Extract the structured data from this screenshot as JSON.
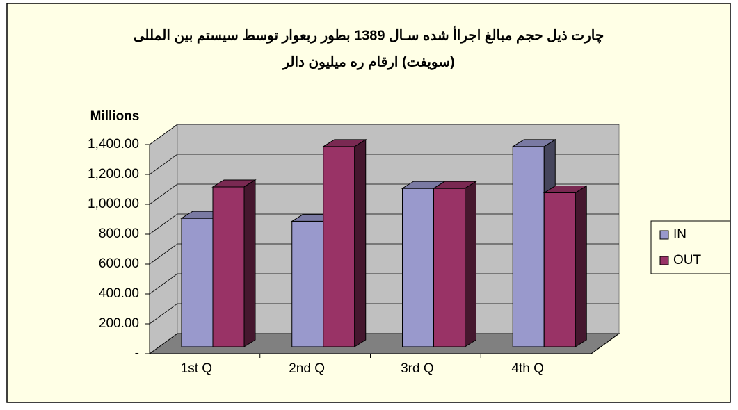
{
  "chart_data": {
    "type": "bar3d",
    "title": [
      "چارت ذیل حجم مبالغ اجراأ شده سـال 1389 بطور ربعوار توسط سیستم بین المللی",
      "(سویفت) ارقام ره میلیون دالر"
    ],
    "y_label": "Millions",
    "categories": [
      "1st Q",
      "2nd Q",
      "3rd Q",
      "4th Q"
    ],
    "series": [
      {
        "name": "IN",
        "color": "#9999cc",
        "values": [
          860,
          840,
          1060,
          1340
        ]
      },
      {
        "name": "OUT",
        "color": "#993366",
        "values": [
          1070,
          1340,
          1060,
          1030
        ]
      }
    ],
    "ylim": [
      0,
      1400
    ],
    "yticks": [
      {
        "value": 0,
        "label": "-"
      },
      {
        "value": 200,
        "label": "200.00"
      },
      {
        "value": 400,
        "label": "400.00"
      },
      {
        "value": 600,
        "label": "600.00"
      },
      {
        "value": 800,
        "label": "800.00"
      },
      {
        "value": 1000,
        "label": "1,000.00"
      },
      {
        "value": 1200,
        "label": "1,200.00"
      },
      {
        "value": 1400,
        "label": "1,400.00"
      }
    ],
    "grid": true,
    "legend": "right"
  }
}
